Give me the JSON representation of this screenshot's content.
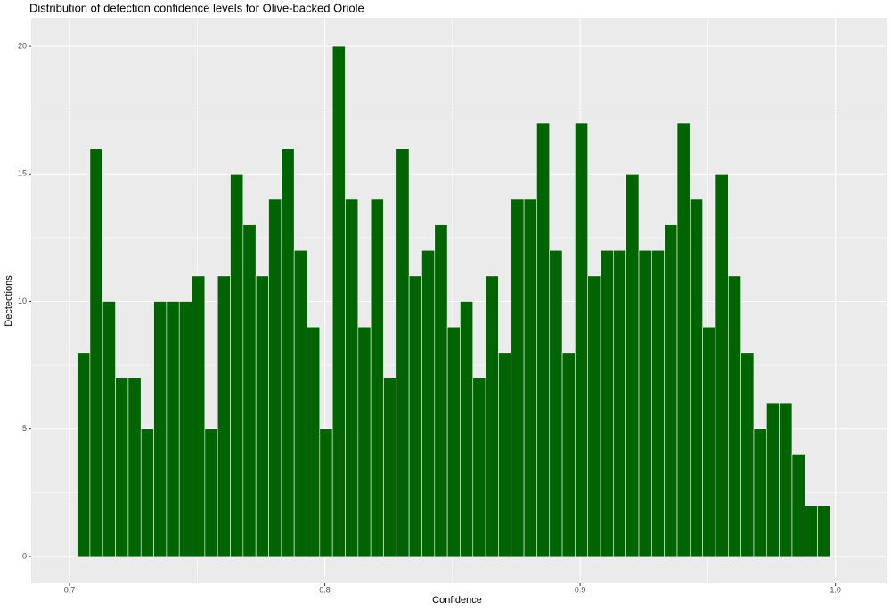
{
  "chart_data": {
    "type": "histogram",
    "title": "Distribution of detection confidence levels for Olive-backed Oriole",
    "x_label": "Confidence",
    "y_label": "Dectections",
    "color": "#006400",
    "edge_color": "#ffffff",
    "grid": true,
    "bins": [
      0.703,
      0.708,
      0.713,
      0.718,
      0.723,
      0.728,
      0.733,
      0.738,
      0.743,
      0.748,
      0.753,
      0.758,
      0.763,
      0.768,
      0.773,
      0.778,
      0.783,
      0.788,
      0.793,
      0.798,
      0.803,
      0.808,
      0.813,
      0.818,
      0.823,
      0.828,
      0.833,
      0.838,
      0.843,
      0.848,
      0.853,
      0.858,
      0.863,
      0.868,
      0.873,
      0.878,
      0.883,
      0.888,
      0.893,
      0.898,
      0.903,
      0.908,
      0.913,
      0.918,
      0.923,
      0.928,
      0.933,
      0.938,
      0.943,
      0.948,
      0.953,
      0.958,
      0.963,
      0.968,
      0.973,
      0.978,
      0.983,
      0.988,
      0.993,
      0.998
    ],
    "values": [
      8,
      16,
      10,
      7,
      7,
      5,
      10,
      10,
      10,
      11,
      5,
      11,
      15,
      13,
      11,
      14,
      16,
      12,
      9,
      5,
      20,
      14,
      9,
      14,
      7,
      16,
      11,
      12,
      13,
      9,
      10,
      7,
      11,
      8,
      14,
      14,
      17,
      12,
      8,
      17,
      11,
      12,
      12,
      15,
      12,
      12,
      13,
      17,
      14,
      9,
      15,
      11,
      8,
      5,
      6,
      6,
      4,
      2,
      2
    ],
    "xlim": [
      0.685,
      1.02
    ],
    "ylim": [
      -1.05,
      21.12
    ],
    "xticks": [
      0.7,
      0.8,
      0.9,
      {
        "value": 1.0,
        "label": "1.0"
      }
    ],
    "yticks": [
      0,
      5,
      10,
      15,
      20
    ]
  }
}
